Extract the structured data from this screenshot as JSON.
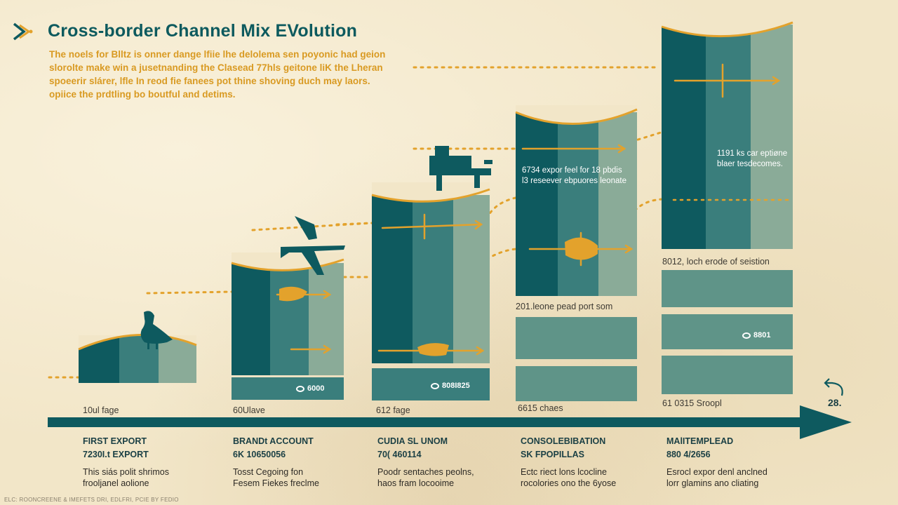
{
  "title": "Cross-border Channel Mix EVolution",
  "intro": [
    "The noels for Blltz is onner dange lfiie lhe delolema sen poyonic had geion",
    "slorolte make win a jusetnanding the Clasead 77hls geitone liK the Lheran",
    "spoeerir slárer, lfle In reod fie fanees pot thine shoving duch may laors.",
    "opiice the prdtling bo boutful and detims."
  ],
  "columns": [
    {
      "label": "10ul fage",
      "badge": "",
      "stage": {
        "title": "FIRST EXPORT",
        "sub": "7230I.t EXPORT",
        "desc": [
          "This siás polit shrimos",
          "frooljanel aolione"
        ]
      }
    },
    {
      "label": "60Ulave",
      "badge": "6000",
      "stage": {
        "title": "BRANDt ACCOUNT",
        "sub": "6K 10650056",
        "desc": [
          "Tosst Cegoing fon",
          "Fesem Fiekes freclme"
        ]
      }
    },
    {
      "label": "612 fage",
      "badge": "808I825",
      "stage": {
        "title": "CUDIA SL UNOM",
        "sub": "70( 460114",
        "desc": [
          "Poodr sentaches peolns,",
          "haos fram locooime"
        ]
      }
    },
    {
      "label": "6615 chaes",
      "badge": "",
      "text_top": [
        "6734 expor feel for 18 pbdis",
        "l3 reseever ebpuores leonate"
      ],
      "text_mid": "201.leone pead port som",
      "stage": {
        "title": "CONSOLEBIBATION",
        "sub": "SK FPOPILLAS",
        "desc": [
          "Ectc riect lons lcocline",
          "rocolories ono the 6yose"
        ]
      }
    },
    {
      "label": "61 0315 Sroopl",
      "badge": "8801",
      "text_top": [
        "1191 ks car eptiøne",
        "blaer tesdecomes."
      ],
      "text_mid": "8012, loch erode of seistion",
      "stage": {
        "title": "MAlITEMPLEAD",
        "sub": "880 4/2656",
        "desc": [
          "Esrocl expor denl anclned",
          "lorr glamins ano cliating"
        ]
      }
    }
  ],
  "year": "28.",
  "footer": "ELC: ROONCREENE & IMEFETS DRI, EDLFRI, PCIE BY FEDIO",
  "colors": {
    "teal_dark": "#0e5a5f",
    "teal_mid": "#3a7e7c",
    "teal_light": "#8aab98",
    "accent_orange": "#e3a22c",
    "title": "#0d5a5e",
    "background": "#f2e6c8"
  },
  "icons": [
    "logo-arrow-icon",
    "goose-icon",
    "plane-icon",
    "truck-icon",
    "eye-icon",
    "return-arrow-icon"
  ]
}
